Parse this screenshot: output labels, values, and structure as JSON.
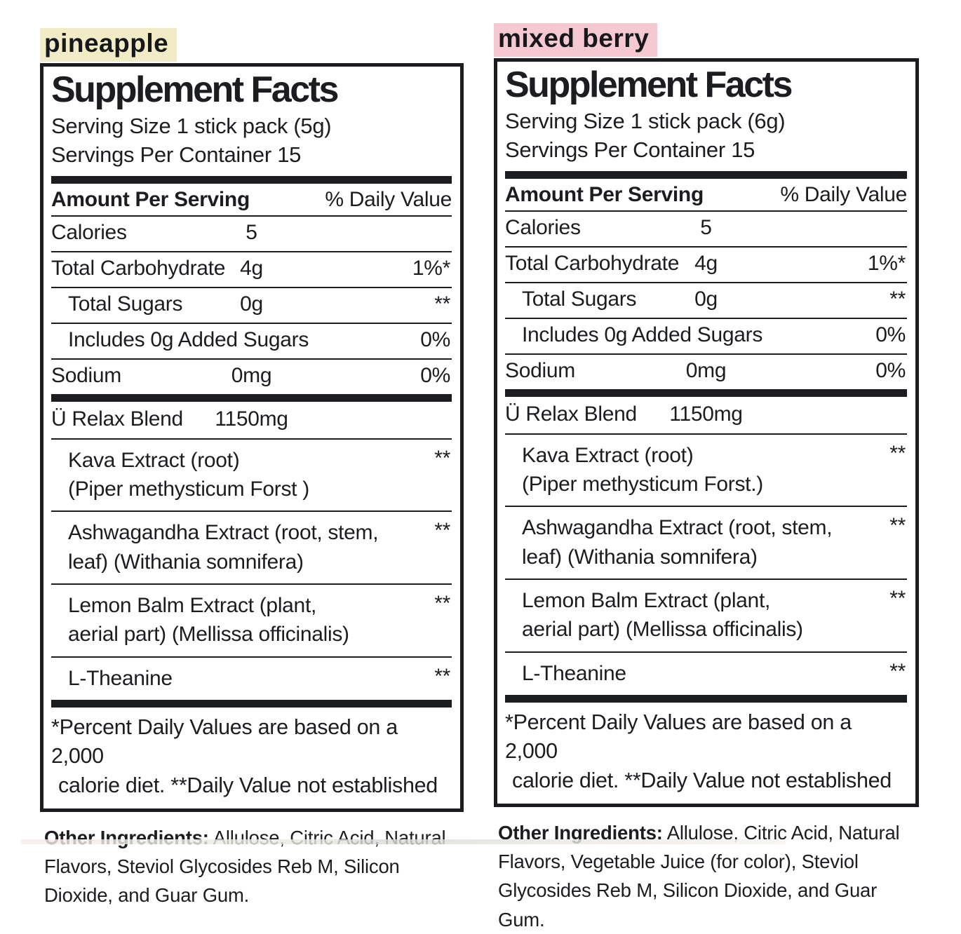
{
  "page": {
    "background": "#ffffff",
    "text_color": "#1b1d20"
  },
  "labels": [
    {
      "flavor": "pineapple",
      "highlight_color": "#f2ecc6",
      "title": "Supplement Facts",
      "serving_size": "Serving Size 1 stick pack (5g)",
      "servings_per_container": "Servings Per Container 15",
      "amount_header": "Amount Per Serving",
      "dv_header": "% Daily Value",
      "nutrients": [
        {
          "name": "Calories",
          "amount": "5",
          "dv": ""
        },
        {
          "name": "Total Carbohydrate",
          "amount": "4g",
          "dv": "1%*"
        },
        {
          "name": "Total Sugars",
          "amount": "0g",
          "dv": "**"
        },
        {
          "name": "Includes 0g Added Sugars",
          "amount": "",
          "dv": "0%"
        },
        {
          "name": "Sodium",
          "amount": "0mg",
          "dv": "0%"
        }
      ],
      "blend": {
        "name": "Ü Relax Blend",
        "amount": "1150mg",
        "ingredients": [
          {
            "line1": "Kava Extract (root)",
            "line2": "(Piper methysticum Forst )",
            "dv": "**"
          },
          {
            "line1": "Ashwagandha Extract (root, stem,",
            "line2": "leaf) (Withania somnifera)",
            "dv": "**"
          },
          {
            "line1": "Lemon Balm Extract (plant,",
            "line2": "aerial part) (Mellissa officinalis)",
            "dv": "**"
          },
          {
            "line1": "L-Theanine",
            "line2": "",
            "dv": "**"
          }
        ]
      },
      "footnote_line1": "*Percent Daily Values are based on a 2,000",
      "footnote_line2": "calorie diet. **Daily Value not established",
      "other_ingredients_label": "Other Ingredients:",
      "other_ingredients_text": " Allulose, Citric Acid, Natural Flavors, Steviol Glycosides Reb M, Silicon Dioxide, and Guar Gum."
    },
    {
      "flavor": "mixed berry",
      "highlight_color": "#f6c8d1",
      "title": "Supplement Facts",
      "serving_size": "Serving Size 1 stick pack (6g)",
      "servings_per_container": "Servings Per Container 15",
      "amount_header": "Amount Per Serving",
      "dv_header": "% Daily Value",
      "nutrients": [
        {
          "name": "Calories",
          "amount": "5",
          "dv": ""
        },
        {
          "name": "Total Carbohydrate",
          "amount": "4g",
          "dv": "1%*"
        },
        {
          "name": "Total Sugars",
          "amount": "0g",
          "dv": "**"
        },
        {
          "name": "Includes 0g Added Sugars",
          "amount": "",
          "dv": "0%"
        },
        {
          "name": "Sodium",
          "amount": "0mg",
          "dv": "0%"
        }
      ],
      "blend": {
        "name": "Ü Relax Blend",
        "amount": "1150mg",
        "ingredients": [
          {
            "line1": "Kava Extract (root)",
            "line2": "(Piper methysticum Forst.)",
            "dv": "**"
          },
          {
            "line1": "Ashwagandha Extract (root, stem,",
            "line2": "leaf) (Withania somnifera)",
            "dv": "**"
          },
          {
            "line1": "Lemon Balm Extract (plant,",
            "line2": "aerial part) (Mellissa officinalis)",
            "dv": "**"
          },
          {
            "line1": "L-Theanine",
            "line2": "",
            "dv": "**"
          }
        ]
      },
      "footnote_line1": "*Percent Daily Values are based on a 2,000",
      "footnote_line2": "calorie diet. **Daily Value not established",
      "other_ingredients_label": "Other Ingredients:",
      "other_ingredients_text": " Allulose, Citric Acid, Natural Flavors, Vegetable Juice (for color), Steviol Glycosides Reb M, Silicon Dioxide, and Guar Gum."
    }
  ]
}
